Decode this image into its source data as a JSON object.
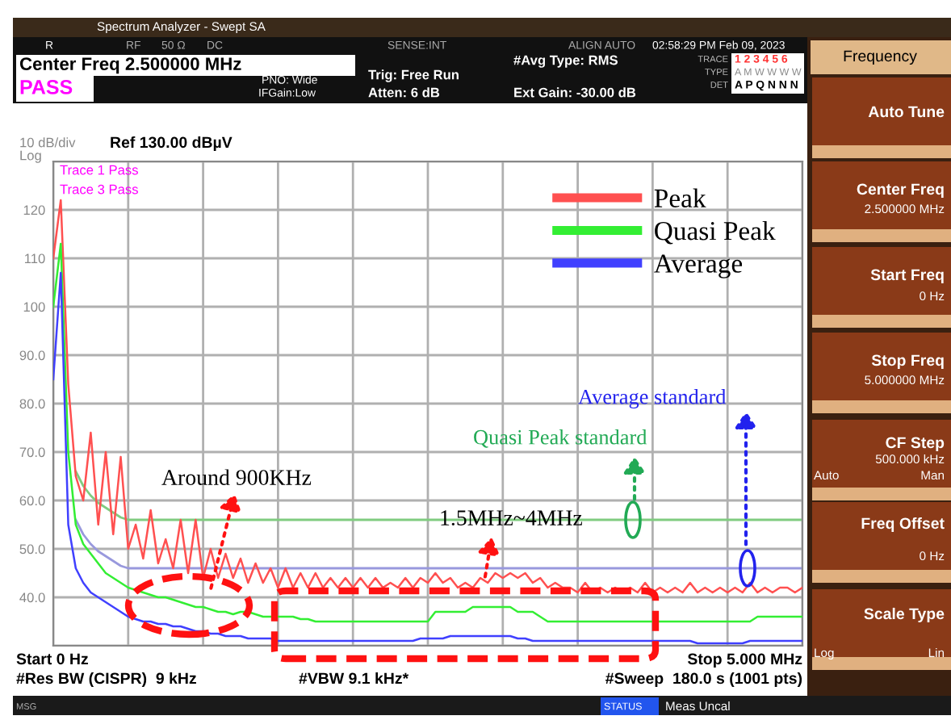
{
  "chart_data": {
    "type": "line",
    "categories": [
      null,
      null,
      null,
      null,
      null,
      null,
      null,
      null,
      null,
      null,
      null,
      null,
      null,
      null,
      null,
      null,
      null,
      null,
      null,
      null,
      null,
      null,
      null,
      null,
      null,
      null,
      null,
      null,
      null,
      null,
      null,
      null,
      null,
      null,
      null,
      null,
      null,
      null,
      null,
      null,
      null,
      null,
      null,
      null,
      null,
      null,
      null,
      null,
      null,
      null,
      null,
      null,
      null,
      null,
      null,
      null,
      null,
      null,
      null,
      null,
      null,
      null,
      null,
      null,
      null,
      null,
      null,
      null,
      null,
      null,
      null,
      null,
      null,
      null,
      null,
      null,
      null,
      null,
      null,
      null,
      null,
      null,
      null,
      null,
      null,
      null,
      null,
      null,
      null,
      null,
      null,
      null,
      null,
      null,
      null,
      null,
      null,
      null,
      null,
      null,
      null
    ],
    "ylim": [
      30,
      130
    ],
    "yticks": [
      {
        "value": 30,
        "label": null
      },
      {
        "value": 40,
        "label": "40.0"
      },
      {
        "value": 50,
        "label": "50.0"
      },
      {
        "value": 60,
        "label": "60.0"
      },
      {
        "value": 70,
        "label": "70.0"
      },
      {
        "value": 80,
        "label": "80.0"
      },
      {
        "value": 90,
        "label": "90.0"
      },
      {
        "value": 100,
        "label": "100"
      },
      {
        "value": 110,
        "label": "110"
      },
      {
        "value": 120,
        "label": "120"
      },
      {
        "value": 130,
        "label": null
      }
    ],
    "tick_labels": "y",
    "grid": true,
    "legend": "top right",
    "series": [
      {
        "name": "Peak",
        "color": "#ff5050",
        "values": [
          110,
          122,
          84,
          65,
          60,
          74,
          55,
          70,
          53,
          69,
          50,
          55,
          48,
          58,
          47,
          52,
          46,
          56,
          45,
          56,
          44,
          50,
          44,
          49,
          44,
          48,
          43,
          47,
          43,
          46,
          42,
          46,
          42,
          45,
          42,
          45,
          42,
          44,
          42,
          44,
          42,
          44,
          42,
          44,
          42,
          43,
          42,
          44,
          42,
          44,
          43,
          45,
          43,
          44,
          42,
          43,
          42,
          44,
          43,
          45,
          44,
          45,
          44,
          45,
          43,
          44,
          42,
          43,
          42,
          42,
          41,
          43,
          41,
          42,
          41,
          42,
          41,
          42,
          41,
          43,
          41,
          42,
          41,
          42,
          41,
          43,
          41,
          42,
          41,
          42,
          41,
          42,
          41,
          43,
          41,
          42,
          41,
          42,
          42,
          41,
          42
        ]
      },
      {
        "name": "Quasi Peak",
        "color": "#33ee33",
        "values": [
          100,
          113,
          70,
          55,
          51,
          49,
          47,
          45,
          44,
          43,
          42,
          41.5,
          41,
          40.5,
          40,
          40,
          39.5,
          39,
          38.5,
          38,
          38,
          37.5,
          37,
          37,
          36.5,
          37,
          37,
          36.5,
          36,
          36,
          36,
          36,
          36,
          35.5,
          35.5,
          35,
          35,
          35,
          35,
          35,
          35,
          35,
          35,
          35,
          35,
          35,
          35,
          35,
          35,
          35,
          35,
          37,
          37,
          37,
          37,
          37,
          38,
          38,
          38,
          38,
          38,
          38,
          37,
          37,
          37,
          36,
          35,
          35,
          35,
          35,
          35,
          35,
          35,
          35,
          35,
          35,
          35,
          35,
          35,
          35,
          35,
          35,
          35,
          35,
          35,
          35,
          35,
          35,
          35,
          35,
          35,
          35,
          35,
          35,
          36,
          36,
          36,
          36,
          36,
          36,
          36
        ]
      },
      {
        "name": "Average",
        "color": "#4040ff",
        "values": [
          85,
          107,
          55,
          46,
          43,
          41,
          40,
          39,
          38,
          37,
          36,
          35.5,
          35,
          35,
          34.5,
          34.5,
          34,
          34,
          33.5,
          33,
          33,
          32.5,
          32.5,
          32,
          32,
          32,
          31.5,
          31.5,
          31.5,
          31.5,
          31,
          31,
          31,
          31,
          31,
          31,
          31,
          31,
          31,
          31,
          31,
          31,
          31,
          31,
          31,
          31,
          31,
          31,
          31,
          31.5,
          31.5,
          31.5,
          31.5,
          32,
          32,
          32,
          32,
          32,
          32,
          32,
          32,
          32,
          31.5,
          31.5,
          31,
          31,
          31,
          31,
          31,
          31,
          31,
          31,
          31,
          31,
          31,
          31,
          31,
          31,
          31,
          31,
          31,
          31,
          31,
          31,
          31,
          31,
          30.5,
          30.5,
          30.5,
          30.5,
          30.5,
          30.5,
          30.5,
          31,
          31,
          31,
          31,
          31,
          31,
          31,
          31
        ]
      },
      {
        "color": "#80cc80",
        "values": [
          null,
          null,
          null,
          66,
          63,
          61,
          59.5,
          58.5,
          57.5,
          56.5,
          56,
          56,
          56,
          56,
          56,
          56,
          56,
          56,
          56,
          56,
          56,
          56,
          56,
          56,
          56,
          56,
          56,
          56,
          56,
          56,
          56,
          56,
          56,
          56,
          56,
          56,
          56,
          56,
          56,
          56,
          56,
          56,
          56,
          56,
          56,
          56,
          56,
          56,
          56,
          56,
          56,
          56,
          56,
          56,
          56,
          56,
          56,
          56,
          56,
          56,
          56,
          56,
          56,
          56,
          56,
          56,
          56,
          56,
          56,
          56,
          56,
          56,
          56,
          56,
          56,
          56,
          56,
          56,
          56,
          56,
          56,
          56,
          56,
          56,
          56,
          56,
          56,
          56,
          56,
          56,
          56,
          56,
          56,
          56,
          56,
          56,
          56,
          56,
          56,
          56,
          56
        ]
      },
      {
        "color": "#9999dd",
        "values": [
          null,
          null,
          null,
          56,
          53,
          51,
          49.5,
          48.5,
          47.5,
          46.5,
          46,
          46,
          46,
          46,
          46,
          46,
          46,
          46,
          46,
          46,
          46,
          46,
          46,
          46,
          46,
          46,
          46,
          46,
          46,
          46,
          46,
          46,
          46,
          46,
          46,
          46,
          46,
          46,
          46,
          46,
          46,
          46,
          46,
          46,
          46,
          46,
          46,
          46,
          46,
          46,
          46,
          46,
          46,
          46,
          46,
          46,
          46,
          46,
          46,
          46,
          46,
          46,
          46,
          46,
          46,
          46,
          46,
          46,
          46,
          46,
          46,
          46,
          46,
          46,
          46,
          46,
          46,
          46,
          46,
          46,
          46,
          46,
          46,
          46,
          46,
          46,
          46,
          46,
          46,
          46,
          46,
          46,
          46,
          46,
          46,
          46,
          46,
          46,
          46,
          46,
          46
        ]
      }
    ],
    "annotations": [
      "Spectrum Analyzer - Swept SA",
      "R",
      "RF",
      "50 Ω",
      "DC",
      "SENSE:INT",
      "ALIGN AUTO",
      "02:58:29 PM Feb 09, 2023",
      "Center Freq 2.500000 MHz",
      "PASS",
      "PNO: Wide",
      "IFGain:Low",
      "Trig: Free Run",
      "Atten: 6 dB",
      "#Avg Type: RMS",
      "Ext Gain: -30.00 dB",
      "TRACE",
      "TYPE",
      "DET",
      "1 2 3 4 5 6",
      "A M W W W W",
      "A P Q N N N",
      "10 dB/div",
      "Ref 130.00 dBµV",
      "Log",
      "Trace 1 Pass",
      "Trace 3 Pass",
      "Start 0 Hz",
      "Stop 5.000 MHz",
      "#Res BW (CISPR)  9 kHz",
      "#VBW 9.1 kHz*",
      "#Sweep  180.0 s (1001 pts)",
      "MSG",
      "STATUS",
      "Meas Uncal",
      "Frequency",
      "Auto Tune",
      "Center Freq",
      "2.500000 MHz",
      "Start Freq",
      "0 Hz",
      "Stop Freq",
      "5.000000 MHz",
      "CF Step",
      "500.000 kHz",
      "Auto",
      "Man",
      "Freq Offset",
      "0 Hz",
      "Scale Type",
      "Log",
      "Lin",
      "Around 900KHz",
      "1.5MHz~4MHz",
      "Quasi Peak standard",
      "Average standard"
    ]
  }
}
